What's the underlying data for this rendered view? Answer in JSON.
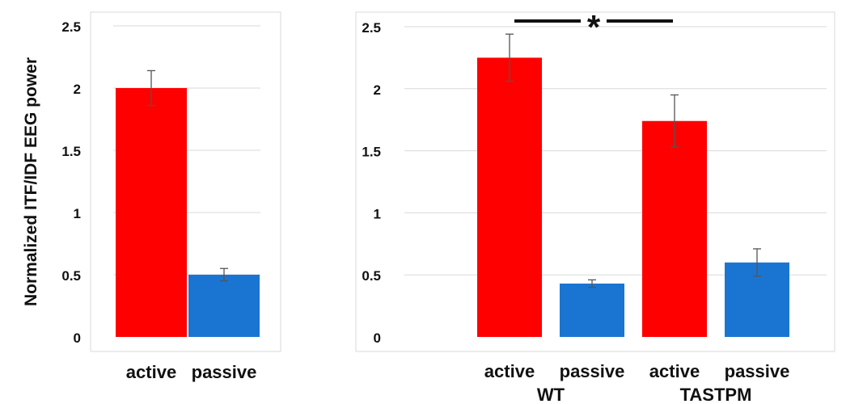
{
  "colors": {
    "active": "#ff0000",
    "passive": "#1a75d2",
    "gridline": "#d9d9d9",
    "frame": "#d9d9d9",
    "error_bar": "#555555",
    "significance": "#111111"
  },
  "chart_data": [
    {
      "type": "bar",
      "ylabel": "Normalized ITF/IDF EEG power",
      "ylim": [
        0,
        2.5
      ],
      "yticks": [
        "0",
        "0.5",
        "1",
        "1.5",
        "2",
        "2.5"
      ],
      "grid": true,
      "bars": [
        {
          "label": "active",
          "value": 2.0,
          "error": 0.14,
          "condition": "active"
        },
        {
          "label": "passive",
          "value": 0.5,
          "error": 0.05,
          "condition": "passive"
        }
      ]
    },
    {
      "type": "bar",
      "ylim": [
        0,
        2.5
      ],
      "yticks": [
        "0",
        "0.5",
        "1",
        "1.5",
        "2",
        "2.5"
      ],
      "grid": true,
      "groups": [
        "WT",
        "TASTPM"
      ],
      "bars": [
        {
          "label": "active",
          "group": "WT",
          "value": 2.25,
          "error": 0.19,
          "condition": "active"
        },
        {
          "label": "passive",
          "group": "WT",
          "value": 0.43,
          "error": 0.03,
          "condition": "passive"
        },
        {
          "label": "active",
          "group": "TASTPM",
          "value": 1.74,
          "error": 0.21,
          "condition": "active"
        },
        {
          "label": "passive",
          "group": "TASTPM",
          "value": 0.6,
          "error": 0.11,
          "condition": "passive"
        }
      ],
      "significance": {
        "symbol": "*",
        "between": [
          "WT active",
          "TASTPM active"
        ]
      }
    }
  ]
}
